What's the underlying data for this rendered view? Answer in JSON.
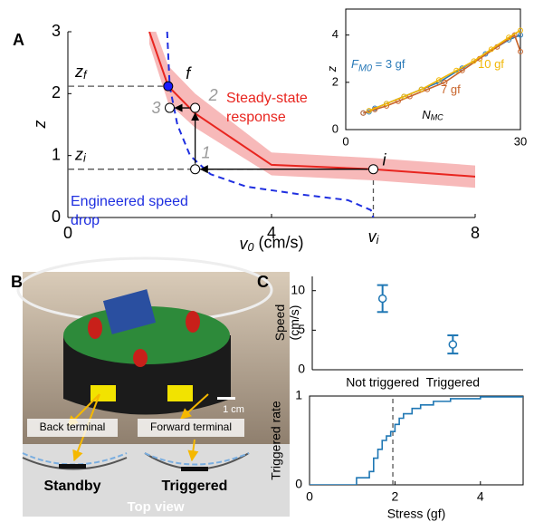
{
  "panel_labels": [
    "A",
    "B",
    "C"
  ],
  "chart_data": [
    {
      "type": "line",
      "xlabel": {
        "base": "v",
        "sub": "0",
        "rest": " (cm/s)"
      },
      "ylabel": {
        "base": "z"
      },
      "xlim": [
        0,
        8
      ],
      "ylim": [
        0,
        3
      ],
      "xticks": [
        0,
        4,
        8
      ],
      "yticks": [
        0,
        1,
        2,
        3
      ],
      "box": false,
      "series": [
        {
          "name": "Steady-state response",
          "color": "#e8251f",
          "band_color": "#f7b9b9",
          "x": [
            1.6,
            1.97,
            2.5,
            4,
            6,
            8
          ],
          "values": [
            3,
            2.12,
            1.68,
            0.85,
            0.78,
            0.66
          ],
          "lower": [
            2.8,
            1.85,
            1.45,
            0.68,
            0.6,
            0.48
          ],
          "upper": [
            3.3,
            2.45,
            2.0,
            1.05,
            0.96,
            0.84
          ]
        },
        {
          "name": "Engineered speed drop",
          "color": "#1f2fe0",
          "dash": true,
          "x": [
            1.95,
            2.0,
            2.15,
            2.4,
            2.8,
            3.5,
            4.5,
            5.5,
            5.95,
            6
          ],
          "values": [
            3,
            2.12,
            1.5,
            1.0,
            0.7,
            0.5,
            0.38,
            0.28,
            0.12,
            0
          ]
        }
      ],
      "points": [
        {
          "label": "i",
          "x": 6,
          "y": 0.78,
          "color": "#ffffff",
          "label_color": "#000000"
        },
        {
          "label": "1",
          "x": 2.5,
          "y": 0.78,
          "color": "#ffffff",
          "label_color": "#999999"
        },
        {
          "label": "2",
          "x": 2.5,
          "y": 1.77,
          "color": "#ffffff",
          "label_color": "#999999"
        },
        {
          "label": "3",
          "x": 2.0,
          "y": 1.77,
          "color": "#ffffff",
          "label_color": "#999999"
        },
        {
          "label": "f",
          "x": 1.97,
          "y": 2.12,
          "color": "#1a1aff",
          "label_color": "#000000"
        }
      ],
      "ref_lines": [
        {
          "axis": "y",
          "value": 2.12,
          "label": {
            "base": "z",
            "sub": "f"
          }
        },
        {
          "axis": "y",
          "value": 0.78,
          "label": {
            "base": "z",
            "sub": "i"
          }
        },
        {
          "axis": "x",
          "value": 6,
          "label": {
            "base": "v",
            "sub": "i"
          }
        }
      ]
    },
    {
      "type": "line",
      "xlabel": {
        "base": "N",
        "sub": "MC"
      },
      "ylabel": {
        "base": "z"
      },
      "xlim": [
        0,
        30
      ],
      "ylim": [
        0,
        5.1
      ],
      "xticks": [
        0,
        30
      ],
      "yticks": [
        0,
        2,
        4
      ],
      "box": true,
      "series": [
        {
          "name": {
            "base": "F",
            "sub": "M0",
            "rest": " = 3 gf"
          },
          "color": "#2a7ab8",
          "markers": true,
          "x": [
            3,
            4,
            5,
            7,
            10,
            13,
            16,
            20,
            24,
            28,
            30
          ],
          "values": [
            0.7,
            0.75,
            0.9,
            1.1,
            1.4,
            1.7,
            2.0,
            2.6,
            3.2,
            3.8,
            4.0
          ]
        },
        {
          "name": "7 gf",
          "color": "#c8642a",
          "markers": true,
          "x": [
            3,
            5,
            7,
            9,
            11,
            14,
            17,
            20,
            23,
            26,
            29,
            30
          ],
          "values": [
            0.7,
            0.85,
            1.0,
            1.2,
            1.4,
            1.7,
            2.0,
            2.5,
            3.0,
            3.5,
            4.0,
            3.3
          ]
        },
        {
          "name": "10 gf",
          "color": "#f2b705",
          "markers": true,
          "x": [
            4,
            7,
            10,
            13,
            16,
            19,
            22,
            25,
            28,
            30
          ],
          "values": [
            0.8,
            1.1,
            1.4,
            1.7,
            2.1,
            2.5,
            2.9,
            3.4,
            3.9,
            4.2
          ]
        }
      ]
    },
    {
      "type": "errorbar",
      "ylabel": [
        "Speed",
        "(cm/s)"
      ],
      "categories": [
        "Not triggered",
        "Triggered"
      ],
      "values": [
        9.0,
        3.2
      ],
      "errors": [
        1.7,
        1.15
      ],
      "color": "#1f77b4",
      "ylim": [
        0,
        11.8
      ],
      "yticks": [
        0,
        5,
        10
      ],
      "box": false
    },
    {
      "type": "line",
      "xlabel": "Stress (gf)",
      "ylabel": "Triggered rate",
      "xlim": [
        0,
        5
      ],
      "ylim": [
        0,
        1
      ],
      "xticks": [
        0,
        2,
        4
      ],
      "yticks": [
        0,
        1
      ],
      "box": true,
      "series": [
        {
          "color": "#1f77b4",
          "x": [
            0,
            1.1,
            1.1,
            1.4,
            1.4,
            1.5,
            1.5,
            1.6,
            1.6,
            1.7,
            1.7,
            1.8,
            1.8,
            1.9,
            1.9,
            2.0,
            2.0,
            2.1,
            2.1,
            2.2,
            2.2,
            2.4,
            2.4,
            2.6,
            2.6,
            2.9,
            2.9,
            3.3,
            3.3,
            4.0,
            4.0,
            5
          ],
          "values": [
            0,
            0,
            0.08,
            0.08,
            0.15,
            0.15,
            0.3,
            0.3,
            0.4,
            0.4,
            0.5,
            0.5,
            0.55,
            0.55,
            0.6,
            0.6,
            0.68,
            0.68,
            0.75,
            0.75,
            0.8,
            0.8,
            0.86,
            0.86,
            0.9,
            0.9,
            0.94,
            0.94,
            0.97,
            0.97,
            0.99,
            0.99
          ]
        }
      ],
      "ref_lines": [
        {
          "axis": "x",
          "value": 1.95
        }
      ]
    }
  ],
  "photo": {
    "scale_bar": "1 cm",
    "terminals": [
      "Back terminal",
      "Forward terminal"
    ],
    "states": [
      "Standby",
      "Triggered"
    ],
    "view": "Top view"
  }
}
